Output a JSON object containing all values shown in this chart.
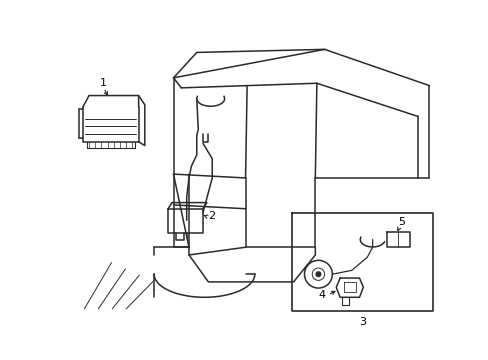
{
  "background_color": "#ffffff",
  "line_color": "#2a2a2a",
  "label_color": "#000000",
  "label_fontsize": 8,
  "fig_width": 4.89,
  "fig_height": 3.6,
  "dpi": 100
}
